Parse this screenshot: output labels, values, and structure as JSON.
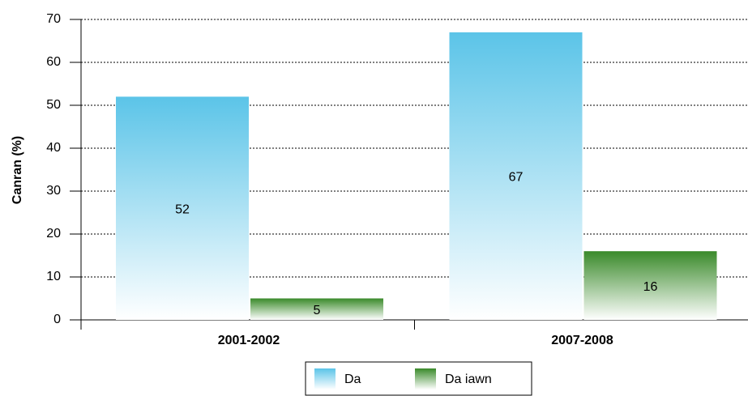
{
  "chart_data": {
    "type": "bar",
    "y_label": "Canran (%)",
    "categories": [
      "2001-2002",
      "2007-2008"
    ],
    "series": [
      {
        "name": "Da",
        "color": "#5bc4e8",
        "values": [
          52,
          67
        ]
      },
      {
        "name": "Da iawn",
        "color": "#3a8a2a",
        "values": [
          5,
          16
        ]
      }
    ],
    "ylim": [
      0,
      70
    ],
    "yticks": [
      0,
      10,
      20,
      30,
      40,
      50,
      60,
      70
    ],
    "grid": true
  }
}
